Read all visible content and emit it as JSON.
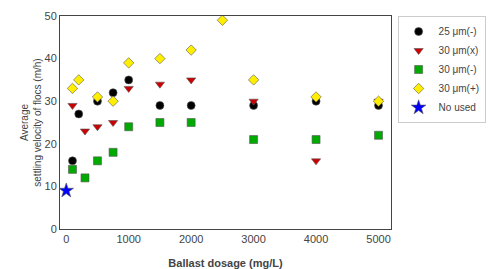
{
  "chart_data": {
    "type": "scatter",
    "xlabel": "Ballast dosage (mg/L)",
    "ylabel": "Average\nsettling velocity of flocs (m/h)",
    "xlim": [
      -100,
      5200
    ],
    "ylim": [
      0,
      50
    ],
    "xticks": [
      0,
      1000,
      2000,
      3000,
      4000,
      5000
    ],
    "yticks": [
      0,
      10,
      20,
      30,
      40,
      50
    ],
    "grid": false,
    "legend": "upper right",
    "series": [
      {
        "name": "25 μm(-)",
        "color": "black",
        "marker": "circle",
        "x": [
          100,
          200,
          500,
          750,
          1000,
          1500,
          2000,
          3000,
          4000,
          5000
        ],
        "values": [
          16,
          27,
          30,
          32,
          35,
          29,
          29,
          29,
          30,
          29
        ]
      },
      {
        "name": "30 μm(x)",
        "color": "#cc0000",
        "marker": "triangle-down",
        "x": [
          100,
          300,
          500,
          750,
          1000,
          1500,
          2000,
          3000,
          4000,
          5000
        ],
        "values": [
          29,
          23,
          24,
          25,
          33,
          34,
          35,
          30,
          16,
          30
        ]
      },
      {
        "name": "30 μm(-)",
        "color": "#00aa00",
        "marker": "square",
        "x": [
          100,
          300,
          500,
          750,
          1000,
          1500,
          2000,
          3000,
          4000,
          5000
        ],
        "values": [
          14,
          12,
          16,
          18,
          24,
          25,
          25,
          21,
          21,
          22
        ]
      },
      {
        "name": "30 μm(+)",
        "color": "#ffee00",
        "marker": "diamond",
        "x": [
          100,
          200,
          500,
          750,
          1000,
          1500,
          2000,
          2500,
          3000,
          4000,
          5000
        ],
        "values": [
          33,
          35,
          31,
          30,
          39,
          40,
          42,
          49,
          35,
          31,
          30
        ]
      },
      {
        "name": "No used",
        "color": "blue",
        "marker": "star",
        "x": [
          0
        ],
        "values": [
          9
        ]
      }
    ]
  }
}
